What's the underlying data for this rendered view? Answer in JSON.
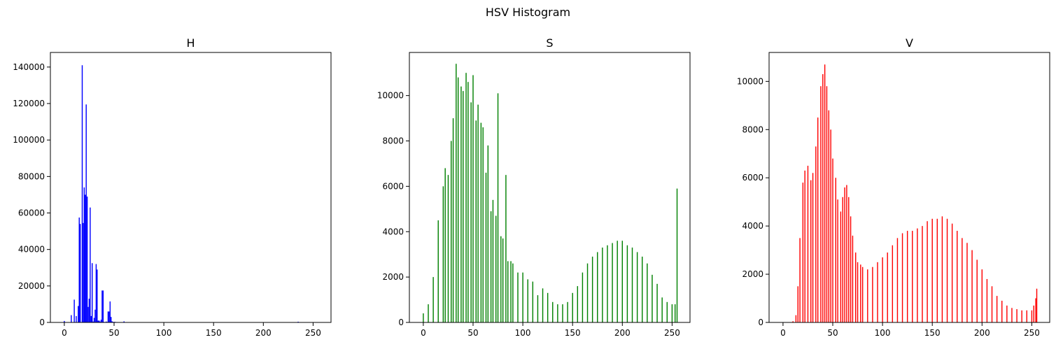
{
  "figure": {
    "suptitle": "HSV Histogram"
  },
  "chart_data": [
    {
      "type": "bar",
      "title": "H",
      "xlabel": "",
      "ylabel": "",
      "color": "#0000ff",
      "xlim": [
        -14,
        268
      ],
      "ylim": [
        0,
        148000
      ],
      "xticks": [
        0,
        50,
        100,
        150,
        200,
        250
      ],
      "yticks": [
        0,
        20000,
        40000,
        60000,
        80000,
        100000,
        120000,
        140000
      ],
      "x": [
        0,
        7,
        10,
        12,
        14,
        15,
        16,
        18,
        19,
        20,
        21,
        22,
        23,
        24,
        25,
        26,
        27,
        28,
        29,
        30,
        31,
        32,
        33,
        34,
        35,
        36,
        37,
        38,
        39,
        40,
        41,
        42,
        43,
        44,
        45,
        46,
        47,
        48,
        49,
        50,
        51,
        52,
        53,
        54,
        55,
        56,
        57,
        58,
        59,
        60,
        65,
        70,
        80,
        90,
        100,
        120,
        150,
        180,
        200,
        230,
        235,
        240
      ],
      "values": [
        800,
        4000,
        12500,
        3500,
        9000,
        57500,
        54000,
        141000,
        54500,
        74000,
        70000,
        119500,
        69000,
        8500,
        13000,
        63000,
        3500,
        32500,
        500,
        2500,
        7000,
        32000,
        29000,
        1000,
        1000,
        500,
        1500,
        17500,
        17500,
        300,
        200,
        500,
        300,
        6000,
        6000,
        11500,
        3000,
        600,
        300,
        300,
        300,
        200,
        200,
        150,
        150,
        100,
        100,
        100,
        100,
        600,
        100,
        100,
        100,
        50,
        50,
        50,
        50,
        50,
        50,
        50,
        400,
        50
      ]
    },
    {
      "type": "bar",
      "title": "S",
      "xlabel": "",
      "ylabel": "",
      "color": "#008000",
      "xlim": [
        -14,
        268
      ],
      "ylim": [
        0,
        11900
      ],
      "xticks": [
        0,
        50,
        100,
        150,
        200,
        250
      ],
      "yticks": [
        0,
        2000,
        4000,
        6000,
        8000,
        10000
      ],
      "x": [
        0,
        5,
        10,
        15,
        20,
        22,
        25,
        28,
        30,
        33,
        35,
        38,
        40,
        43,
        45,
        48,
        50,
        53,
        55,
        58,
        60,
        63,
        65,
        68,
        70,
        73,
        75,
        78,
        80,
        83,
        85,
        88,
        90,
        95,
        100,
        105,
        110,
        115,
        120,
        125,
        130,
        135,
        140,
        145,
        150,
        155,
        160,
        165,
        170,
        175,
        180,
        185,
        190,
        195,
        200,
        205,
        210,
        215,
        220,
        225,
        230,
        235,
        240,
        245,
        250,
        253,
        255
      ],
      "values": [
        400,
        800,
        2000,
        4500,
        6000,
        6800,
        6500,
        8000,
        9000,
        11400,
        10800,
        10400,
        10200,
        11000,
        10600,
        9700,
        10900,
        8900,
        9600,
        8800,
        8600,
        6600,
        7800,
        4900,
        5400,
        4700,
        10100,
        3800,
        3700,
        6500,
        2700,
        2700,
        2600,
        2200,
        2200,
        1900,
        1800,
        1200,
        1500,
        1300,
        900,
        800,
        800,
        900,
        1300,
        1600,
        2200,
        2600,
        2900,
        3100,
        3300,
        3400,
        3500,
        3600,
        3600,
        3400,
        3300,
        3100,
        2900,
        2600,
        2100,
        1700,
        1100,
        900,
        800,
        800,
        5900
      ]
    },
    {
      "type": "bar",
      "title": "V",
      "xlabel": "",
      "ylabel": "",
      "color": "#ff0000",
      "xlim": [
        -14,
        268
      ],
      "ylim": [
        0,
        11200
      ],
      "xticks": [
        0,
        50,
        100,
        150,
        200,
        250
      ],
      "yticks": [
        0,
        2000,
        4000,
        6000,
        8000,
        10000
      ],
      "x": [
        0,
        5,
        10,
        13,
        15,
        17,
        20,
        22,
        25,
        28,
        30,
        33,
        35,
        38,
        40,
        42,
        44,
        46,
        48,
        50,
        53,
        55,
        58,
        60,
        62,
        64,
        66,
        68,
        70,
        73,
        75,
        78,
        80,
        85,
        90,
        95,
        100,
        105,
        110,
        115,
        120,
        125,
        130,
        135,
        140,
        145,
        150,
        155,
        160,
        165,
        170,
        175,
        180,
        185,
        190,
        195,
        200,
        205,
        210,
        215,
        220,
        225,
        230,
        235,
        240,
        245,
        250,
        252,
        254,
        255
      ],
      "values": [
        0,
        0,
        50,
        300,
        1500,
        3500,
        5800,
        6300,
        6500,
        5900,
        6200,
        7300,
        8500,
        9800,
        10300,
        10700,
        9800,
        8800,
        8000,
        6800,
        6000,
        5100,
        4600,
        5200,
        5600,
        5700,
        5200,
        4400,
        3600,
        2900,
        2500,
        2400,
        2300,
        2200,
        2300,
        2500,
        2700,
        2900,
        3200,
        3500,
        3700,
        3800,
        3800,
        3900,
        4000,
        4200,
        4300,
        4300,
        4400,
        4300,
        4100,
        3800,
        3500,
        3300,
        3000,
        2600,
        2200,
        1800,
        1500,
        1100,
        900,
        700,
        600,
        550,
        500,
        500,
        500,
        700,
        1000,
        1400
      ]
    }
  ]
}
